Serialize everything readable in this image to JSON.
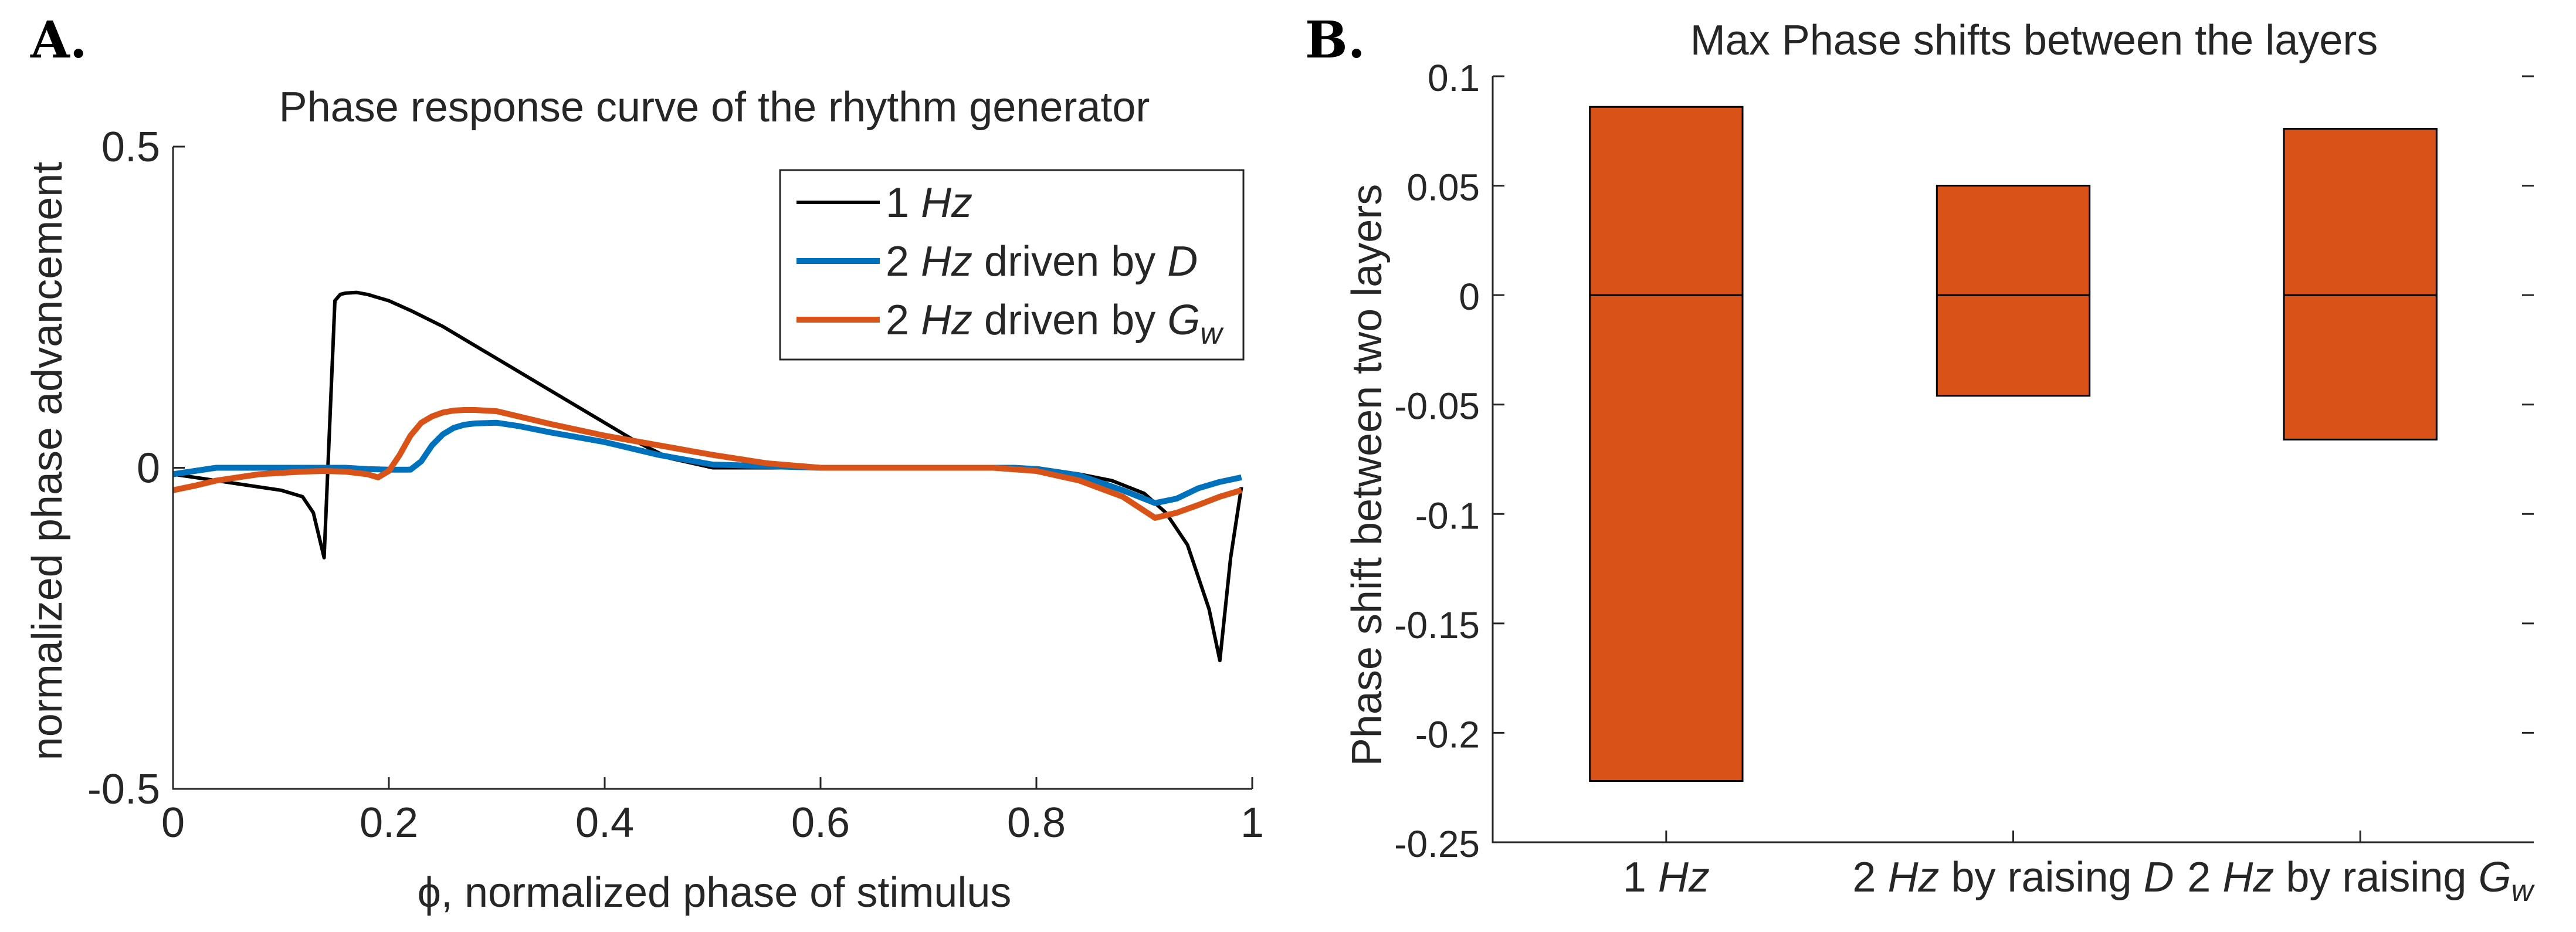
{
  "chart_data": [
    {
      "panel": "A.",
      "type": "line",
      "title": "Phase response curve of the rhythm generator",
      "xlabel": "ϕ, normalized phase of stimulus",
      "ylabel": "normalized phase advancement",
      "xlim": [
        0,
        1
      ],
      "ylim": [
        -0.5,
        0.5
      ],
      "xticks": [
        0,
        0.2,
        0.4,
        0.6,
        0.8,
        1
      ],
      "xtick_labels": [
        "0",
        "0.2",
        "0.4",
        "0.6",
        "0.8",
        "1"
      ],
      "yticks": [
        -0.5,
        0,
        0.5
      ],
      "ytick_labels": [
        "-0.5",
        "0",
        "0.5"
      ],
      "grid": false,
      "legend_position": "top-right",
      "series": [
        {
          "legend": {
            "pre": "1 ",
            "italic": "Hz",
            "post": "",
            "tail": "",
            "sub": ""
          },
          "color": "#000000",
          "x": [
            0,
            0.02,
            0.04,
            0.06,
            0.08,
            0.1,
            0.12,
            0.13,
            0.14,
            0.15,
            0.155,
            0.16,
            0.17,
            0.18,
            0.2,
            0.22,
            0.25,
            0.28,
            0.3,
            0.33,
            0.36,
            0.4,
            0.43,
            0.46,
            0.5,
            0.55,
            0.6,
            0.65,
            0.7,
            0.75,
            0.8,
            0.84,
            0.87,
            0.9,
            0.92,
            0.94,
            0.96,
            0.97,
            0.98,
            0.99
          ],
          "y": [
            -0.01,
            -0.015,
            -0.02,
            -0.025,
            -0.03,
            -0.035,
            -0.045,
            -0.07,
            -0.14,
            0.26,
            0.27,
            0.272,
            0.273,
            0.27,
            0.26,
            0.245,
            0.22,
            0.19,
            0.17,
            0.14,
            0.11,
            0.07,
            0.04,
            0.015,
            0.0,
            0.0,
            0.0,
            0.0,
            0.0,
            0.0,
            0.0,
            -0.01,
            -0.02,
            -0.04,
            -0.07,
            -0.12,
            -0.22,
            -0.3,
            -0.14,
            -0.03
          ]
        },
        {
          "legend": {
            "pre": "2 ",
            "italic": "Hz",
            "post": " driven by ",
            "tail": "D",
            "sub": ""
          },
          "color": "#0072BD",
          "x": [
            0,
            0.02,
            0.04,
            0.06,
            0.08,
            0.1,
            0.12,
            0.14,
            0.16,
            0.18,
            0.2,
            0.22,
            0.23,
            0.24,
            0.25,
            0.26,
            0.27,
            0.28,
            0.3,
            0.32,
            0.35,
            0.4,
            0.45,
            0.5,
            0.6,
            0.7,
            0.78,
            0.8,
            0.84,
            0.88,
            0.91,
            0.93,
            0.95,
            0.97,
            0.99
          ],
          "y": [
            -0.01,
            -0.005,
            0.0,
            0.0,
            0.0,
            0.0,
            0.0,
            0.0,
            0.0,
            -0.002,
            -0.003,
            -0.003,
            0.01,
            0.035,
            0.052,
            0.062,
            0.067,
            0.069,
            0.07,
            0.065,
            0.055,
            0.04,
            0.02,
            0.005,
            0.0,
            0.0,
            0.0,
            -0.002,
            -0.012,
            -0.035,
            -0.055,
            -0.048,
            -0.032,
            -0.022,
            -0.015
          ]
        },
        {
          "legend": {
            "pre": "2 ",
            "italic": "Hz",
            "post": " driven by ",
            "tail": "G",
            "sub": "w"
          },
          "color": "#D95319",
          "x": [
            0,
            0.02,
            0.04,
            0.06,
            0.08,
            0.1,
            0.12,
            0.14,
            0.16,
            0.18,
            0.19,
            0.2,
            0.21,
            0.22,
            0.23,
            0.24,
            0.25,
            0.26,
            0.27,
            0.28,
            0.3,
            0.32,
            0.35,
            0.4,
            0.45,
            0.5,
            0.55,
            0.6,
            0.7,
            0.76,
            0.8,
            0.84,
            0.88,
            0.91,
            0.93,
            0.95,
            0.97,
            0.99
          ],
          "y": [
            -0.035,
            -0.028,
            -0.02,
            -0.015,
            -0.01,
            -0.008,
            -0.006,
            -0.005,
            -0.006,
            -0.01,
            -0.015,
            -0.005,
            0.02,
            0.05,
            0.07,
            0.08,
            0.086,
            0.089,
            0.09,
            0.09,
            0.088,
            0.08,
            0.068,
            0.05,
            0.035,
            0.02,
            0.007,
            0.0,
            0.0,
            0.0,
            -0.005,
            -0.02,
            -0.045,
            -0.078,
            -0.07,
            -0.058,
            -0.045,
            -0.035
          ]
        }
      ]
    },
    {
      "panel": "B.",
      "type": "bar",
      "title": "Max Phase shifts between the layers",
      "xlabel": "",
      "ylabel": "Phase shift between two layers",
      "ylim": [
        -0.25,
        0.1
      ],
      "yticks": [
        -0.25,
        -0.2,
        -0.15,
        -0.1,
        -0.05,
        0,
        0.05,
        0.1
      ],
      "ytick_labels": [
        "-0.25",
        "-0.2",
        "-0.15",
        "-0.1",
        "-0.05",
        "0",
        "0.05",
        "0.1"
      ],
      "grid": false,
      "bar_color": "#D95319",
      "bars": [
        {
          "label": {
            "pre": "1 ",
            "italic": "Hz",
            "post": "",
            "tail": "",
            "sub": ""
          },
          "min": -0.222,
          "max": 0.086
        },
        {
          "label": {
            "pre": "2 ",
            "italic": "Hz",
            "post": " by raising ",
            "tail": "D",
            "sub": ""
          },
          "min": -0.046,
          "max": 0.05
        },
        {
          "label": {
            "pre": "2 ",
            "italic": "Hz",
            "post": " by raising ",
            "tail": "G",
            "sub": "w"
          },
          "min": -0.066,
          "max": 0.076
        }
      ]
    }
  ]
}
